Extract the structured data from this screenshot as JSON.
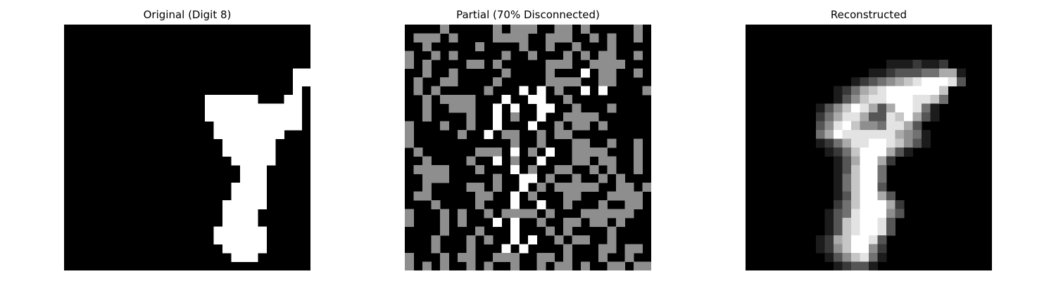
{
  "chart_data": [
    {
      "type": "heatmap",
      "title": "Original (Digit 8)",
      "grid": false,
      "axis": "off",
      "colormap": "gray",
      "value_range": [
        0,
        1
      ],
      "size": [
        28,
        28
      ],
      "rows": [
        "............................",
        "............................",
        "............................",
        "............................",
        "............................",
        "..........................99",
        "..........................99",
        "..........................9.",
        "................999999...99.",
        "................99999999999.",
        "................99999999999.",
        ".................9999999999.",
        ".................99999999...",
        "..................999999....",
        "..................999999....",
        "...................99999....",
        "....................999.....",
        "....................999.....",
        "...................9999.....",
        "...................9999.....",
        "..................99999.....",
        "..................9999......",
        "..................9999......",
        ".................999999.....",
        ".................999999.....",
        "..................99999.....",
        "...................999......",
        "............................"
      ]
    },
    {
      "type": "heatmap",
      "title": "Partial (70% Disconnected)",
      "grid": false,
      "axis": "off",
      "colormap": "gray",
      "value_range": [
        0,
        1
      ],
      "size": [
        28,
        28
      ],
      "rows": [
        "....5.....5.555..55.5.....5.",
        ".555.5....5555..555..5.5..5.",
        "..5.....5....5..5..5...5....",
        "5..5.5.....5..5...5.5.55..5.",
        "5.5....55.5.....555..5555...",
        "..5..5.....5....5...9.55..5.",
        ".5..55....5.....5555..55....",
        ".5.5.....5...9.9.5..9.9....5",
        "..5.5555...9..99..5.........",
        "..5..555..9.9..99..5...5....",
        "..5....5..9.5..9..5555......",
        "5...5..5..9...9..5.55.5.....",
        "5.....5..9.55..5.55.........",
        "5...........5..5...55..5..5.",
        ".5......555.9.5.9..5555...5.",
        "..5....5..9.5..9...55.55..5.",
        ".5555...5...9.5..55..5.5..5.",
        "..555.....5..99.5..5..5.5...",
        "..5....55.5..9.5.55555..55.5",
        ".55.....55..9.5...55...5555.",
        "...5....5...9..9..5...5..55.",
        "5...5.5..5.5555.5...555555..",
        "5...5.5...9.9..5..55.55.5...",
        "....5...5...9...5.5....5....",
        "...5...5.5..9.9..5.55..5....",
        "...5...5...9.9....5...55.55.",
        "5...5.55..555..55.5...5..5..",
        "5.5.5..5.5..5..5.55.5..55.55"
      ]
    },
    {
      "type": "heatmap",
      "title": "Reconstructed",
      "grid": false,
      "axis": "off",
      "colormap": "gray",
      "value_range": [
        0,
        1
      ],
      "size": [
        28,
        28
      ],
      "rows": [
        "............................",
        "............................",
        "............................",
        "............................",
        "................1112112.....",
        "..............11233344661...",
        "............1234567899983...",
        "..........1246789999997.....",
        "..........1357889998874.....",
        "........13579863699841......",
        "........24688633879631......",
        "........358975548863........",
        "........4698888886541.......",
        "........1246889987531.......",
        ".........1247999631.........",
        "..........1369962...........",
        "..........137994............",
        "..........147994............",
        "..........147993............",
        "..........1379963...........",
        "..........24799962..........",
        ".........134899953..........",
        ".........13789983...........",
        ".........13789983...........",
        "........12679983............",
        "........12579952............",
        ".........1357841............",
        "..........12331............."
      ]
    }
  ],
  "palette": {
    "background": "#ffffff",
    "title_color": "#000000"
  }
}
